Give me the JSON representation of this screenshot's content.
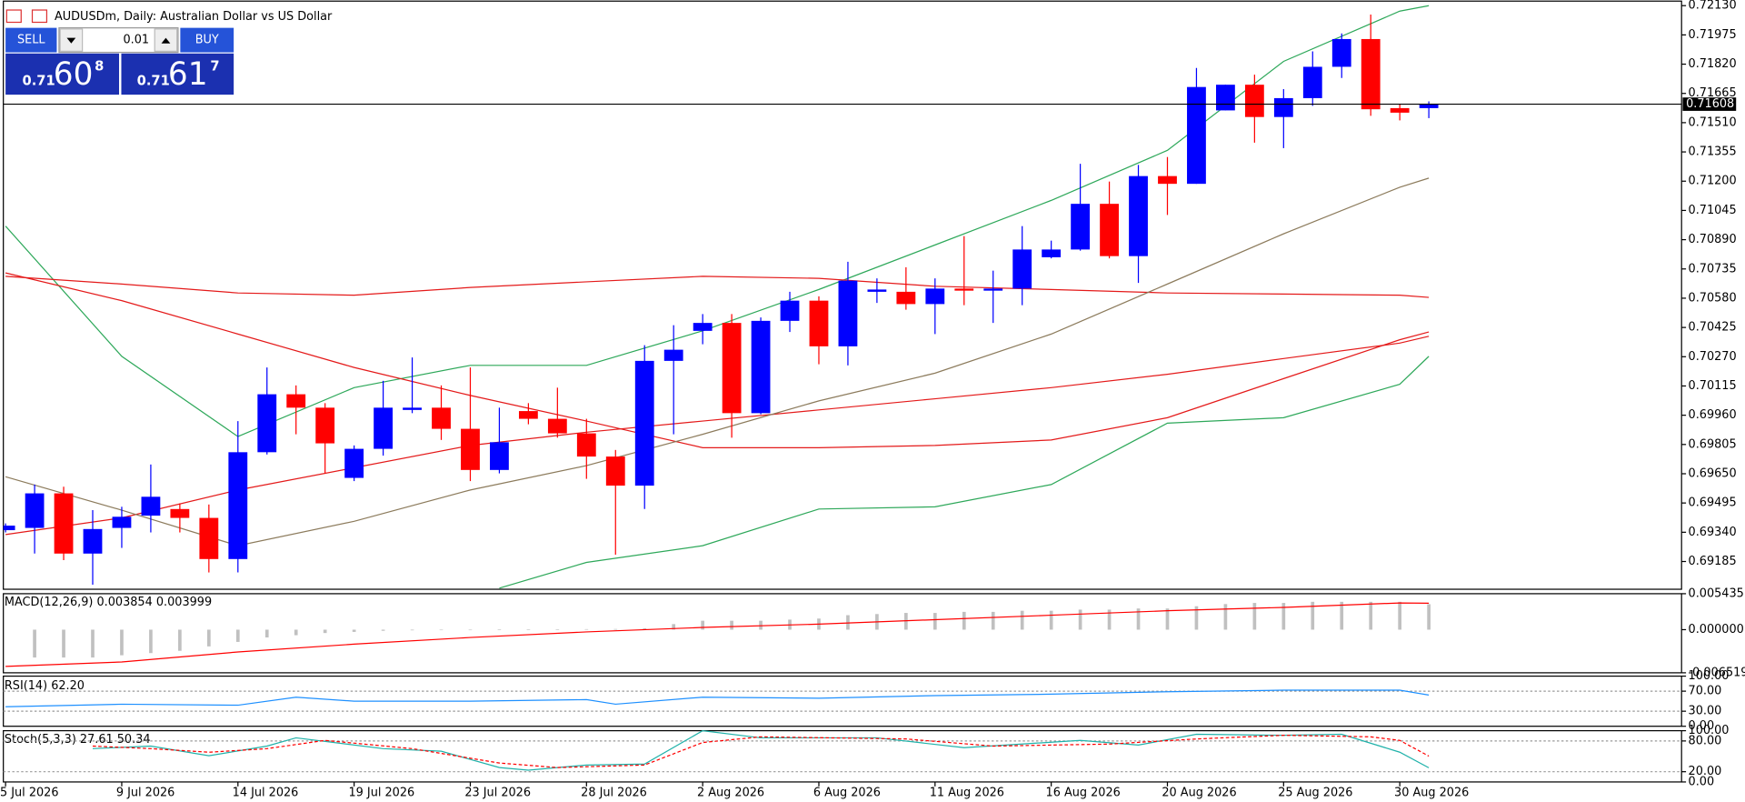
{
  "header": {
    "symbol": "AUDUSDm, Daily:  Australian Dollar vs US Dollar"
  },
  "trade_panel": {
    "sell": "SELL",
    "buy": "BUY",
    "lot": "0.01",
    "bid": {
      "big": "0.71",
      "main": "60",
      "small": "8"
    },
    "ask": {
      "big": "0.71",
      "main": "61",
      "small": "7"
    }
  },
  "chart_data": [
    {
      "type": "candlestick",
      "categories": [
        "5 Jul 2026",
        null,
        null,
        null,
        "9 Jul 2026",
        null,
        null,
        null,
        "14 Jul 2026",
        null,
        null,
        null,
        "19 Jul 2026",
        null,
        null,
        null,
        "23 Jul 2026",
        null,
        null,
        null,
        "28 Jul 2026",
        null,
        null,
        null,
        "2 Aug 2026",
        null,
        null,
        null,
        "6 Aug 2026",
        null,
        null,
        null,
        "11 Aug 2026",
        null,
        null,
        null,
        "16 Aug 2026",
        null,
        null,
        null,
        "20 Aug 2026",
        null,
        null,
        null,
        "25 Aug 2026",
        null,
        null,
        null,
        "30 Aug 2026",
        null
      ],
      "open": [
        0.69351,
        0.69363,
        0.69546,
        0.69227,
        0.69363,
        0.69428,
        0.69463,
        0.69416,
        0.69198,
        0.69764,
        0.70071,
        0.7,
        0.69628,
        0.69782,
        0.69988,
        0.7,
        0.69888,
        0.6967,
        0.69982,
        0.69941,
        0.69864,
        0.69741,
        0.69587,
        0.70248,
        0.70407,
        0.70449,
        0.69971,
        0.7046,
        0.70567,
        0.70325,
        0.70614,
        0.70614,
        0.70549,
        0.70631,
        0.7062,
        0.70631,
        0.70797,
        0.70838,
        0.7108,
        0.70803,
        0.71227,
        0.71186,
        0.71575,
        0.71711,
        0.7154,
        0.7164,
        0.71806,
        0.71953,
        0.71587,
        0.71587
      ],
      "high": [
        0.69387,
        0.69593,
        0.69581,
        0.69457,
        0.69475,
        0.69699,
        0.69493,
        0.69487,
        0.69929,
        0.70213,
        0.70118,
        0.70024,
        0.698,
        0.70142,
        0.70266,
        0.70118,
        0.70213,
        0.7,
        0.70024,
        0.70106,
        0.69941,
        0.69776,
        0.70331,
        0.70437,
        0.70496,
        0.70496,
        0.70478,
        0.70614,
        0.7059,
        0.70773,
        0.70685,
        0.70744,
        0.70685,
        0.70909,
        0.70726,
        0.70962,
        0.70885,
        0.71292,
        0.71198,
        0.71286,
        0.71328,
        0.718,
        0.71711,
        0.71764,
        0.71688,
        0.71888,
        0.71983,
        0.72083,
        0.71611,
        0.71623
      ],
      "low": [
        0.69339,
        0.69227,
        0.69192,
        0.69062,
        0.69257,
        0.69339,
        0.69339,
        0.69127,
        0.69127,
        0.69752,
        0.69859,
        0.69652,
        0.69611,
        0.69746,
        0.69971,
        0.69829,
        0.69611,
        0.69652,
        0.69912,
        0.69841,
        0.69623,
        0.69221,
        0.69463,
        0.69859,
        0.70336,
        0.69841,
        0.69965,
        0.70401,
        0.7023,
        0.70224,
        0.70555,
        0.70519,
        0.7039,
        0.70543,
        0.70449,
        0.70543,
        0.70791,
        0.70832,
        0.70791,
        0.70661,
        0.71021,
        0.71186,
        0.71575,
        0.71404,
        0.71375,
        0.71599,
        0.71747,
        0.71546,
        0.71522,
        0.71534
      ],
      "close": [
        0.69375,
        0.69546,
        0.69227,
        0.69357,
        0.69422,
        0.69528,
        0.69416,
        0.69198,
        0.69764,
        0.70071,
        0.7,
        0.69811,
        0.69782,
        0.7,
        0.7,
        0.69888,
        0.6967,
        0.69817,
        0.69941,
        0.69864,
        0.69741,
        0.69587,
        0.70248,
        0.70307,
        0.70449,
        0.69971,
        0.7046,
        0.70567,
        0.70325,
        0.70673,
        0.70626,
        0.70549,
        0.70631,
        0.7062,
        0.70631,
        0.70838,
        0.70838,
        0.7108,
        0.70803,
        0.71227,
        0.71186,
        0.71699,
        0.71711,
        0.7154,
        0.7164,
        0.71806,
        0.71953,
        0.71581,
        0.71563,
        0.71608
      ],
      "up_color": "#0000ff",
      "down_color": "#ff0000",
      "last": 0.71608,
      "ylim": [
        0.69038,
        0.72154
      ],
      "yticks": [
        {
          "value": 0.7213,
          "label": "0.72130"
        },
        0.71975,
        {
          "value": 0.7182,
          "label": "0.71820"
        },
        0.71665,
        {
          "value": 0.7151,
          "label": "0.71510"
        },
        0.71355,
        {
          "value": 0.712,
          "label": "0.71200"
        },
        0.71045,
        {
          "value": 0.7089,
          "label": "0.70890"
        },
        0.70735,
        {
          "value": 0.7058,
          "label": "0.70580"
        },
        0.70425,
        {
          "value": 0.7027,
          "label": "0.70270"
        },
        0.70115,
        {
          "value": 0.6996,
          "label": "0.69960"
        },
        0.69805,
        {
          "value": 0.6965,
          "label": "0.69650"
        },
        0.69495,
        {
          "value": 0.6934,
          "label": "0.69340"
        },
        0.69185
      ],
      "overlays": [
        {
          "color": "#2ea85a",
          "x": [
            0,
            4,
            8,
            12,
            16,
            20,
            24,
            28,
            32,
            36,
            40,
            44,
            48,
            49
          ],
          "values": [
            0.70962,
            0.70272,
            0.69847,
            0.70106,
            0.70224,
            0.70224,
            0.70407,
            0.70626,
            0.70862,
            0.71098,
            0.71363,
            0.71835,
            0.72101,
            0.7213
          ]
        },
        {
          "color": "#2ea85a",
          "x": [
            17,
            20,
            24,
            28,
            32,
            36,
            40,
            44,
            48,
            49
          ],
          "values": [
            0.69044,
            0.6918,
            0.69269,
            0.69463,
            0.69475,
            0.69593,
            0.69918,
            0.69947,
            0.70124,
            0.70272
          ]
        },
        {
          "color": "#e41a1a",
          "x": [
            0,
            4,
            8,
            12,
            16,
            20,
            24,
            28,
            32,
            36,
            40,
            44,
            48,
            49
          ],
          "values": [
            0.70696,
            0.70655,
            0.70608,
            0.70596,
            0.70637,
            0.70667,
            0.70696,
            0.70685,
            0.70643,
            0.70626,
            0.70608,
            0.70602,
            0.70596,
            0.70584
          ]
        },
        {
          "color": "#e41a1a",
          "x": [
            0,
            4,
            8,
            12,
            16,
            20,
            24,
            28,
            32,
            36,
            40,
            44,
            48,
            49
          ],
          "values": [
            0.70714,
            0.70567,
            0.7039,
            0.70213,
            0.70065,
            0.69929,
            0.69788,
            0.69788,
            0.698,
            0.69829,
            0.69947,
            0.70154,
            0.7036,
            0.70401
          ]
        },
        {
          "color": "#e41a1a",
          "x": [
            0,
            4,
            8,
            12,
            16,
            20,
            24,
            28,
            32,
            36,
            40,
            44,
            48,
            49
          ],
          "values": [
            0.69328,
            0.69416,
            0.69564,
            0.69682,
            0.698,
            0.6987,
            0.69929,
            0.69988,
            0.70047,
            0.70106,
            0.70177,
            0.7026,
            0.70342,
            0.70378
          ]
        },
        {
          "color": "#8c7b5c",
          "x": [
            0,
            4,
            8,
            12,
            16,
            20,
            24,
            28,
            32,
            36,
            40,
            44,
            48,
            49
          ],
          "values": [
            0.69634,
            0.69457,
            0.69269,
            0.69398,
            0.69564,
            0.69693,
            0.69859,
            0.70036,
            0.70183,
            0.7039,
            0.70655,
            0.70921,
            0.71168,
            0.71216
          ]
        }
      ]
    },
    {
      "type": "macd",
      "label": "MACD(12,26,9) 0.003854 0.003999",
      "histogram": {
        "color": "#c0c0c0",
        "values": [
          null,
          -0.00421,
          -0.00421,
          -0.00421,
          -0.00387,
          -0.00354,
          -0.0032,
          -0.00253,
          -0.00185,
          -0.00118,
          -0.00084,
          -0.00051,
          -0.00034,
          -0.00017,
          -0.0001,
          -5e-05,
          -3e-05,
          3e-05,
          5e-05,
          5e-05,
          8e-05,
          0.0001,
          0.0002,
          0.00084,
          0.00135,
          0.00135,
          0.00135,
          0.00152,
          0.00168,
          0.00219,
          0.00236,
          0.00253,
          0.00253,
          0.00269,
          0.00269,
          0.00286,
          0.00286,
          0.00303,
          0.00303,
          0.0032,
          0.0032,
          0.00354,
          0.00387,
          0.00404,
          0.00404,
          0.00421,
          0.00421,
          0.00421,
          0.00421,
          0.003854
        ]
      },
      "series": [
        {
          "color": "#ff0000",
          "x": [
            0,
            4,
            8,
            12,
            16,
            20,
            24,
            28,
            32,
            36,
            40,
            44,
            48,
            49
          ],
          "values": [
            -0.00556,
            -0.00488,
            -0.00337,
            -0.00219,
            -0.00118,
            -0.00034,
            0.00034,
            0.00084,
            0.00152,
            0.00219,
            0.00286,
            0.00337,
            0.00404,
            0.003999
          ]
        }
      ],
      "ylim": [
        -0.006519,
        0.005435
      ],
      "yticks": [
        0.005435,
        {
          "value": 0,
          "label": "0.000000"
        },
        -0.006519
      ]
    },
    {
      "type": "line",
      "label": "RSI(14) 62.20",
      "series": [
        {
          "color": "#1e90ff",
          "x": [
            0,
            4,
            8,
            10,
            12,
            16,
            20,
            21,
            24,
            28,
            32,
            36,
            40,
            44,
            48,
            49
          ],
          "values": [
            39,
            44,
            42,
            58,
            50,
            50,
            53,
            44,
            58,
            56,
            61,
            64,
            69,
            72,
            72,
            62.2
          ]
        }
      ],
      "ylim": [
        0,
        100
      ],
      "yticks": [
        {
          "value": 100,
          "label": "100.00"
        },
        {
          "value": 70,
          "label": "70.00"
        },
        {
          "value": 30,
          "label": "30.00"
        },
        {
          "value": 0,
          "label": "0.00"
        }
      ],
      "levels": [
        70,
        30
      ]
    },
    {
      "type": "line",
      "label": "Stoch(5,3,3) 27.61 50.34",
      "series": [
        {
          "color": "#20b2aa",
          "x": [
            3,
            5,
            7,
            9,
            10,
            13,
            15,
            17,
            18,
            20,
            22,
            24,
            26,
            30,
            33,
            37,
            39,
            41,
            44,
            46,
            48,
            49
          ],
          "values": [
            65,
            70,
            51,
            70,
            86,
            65,
            60,
            28,
            23,
            33,
            35,
            100,
            86,
            86,
            67,
            81,
            72,
            93,
            91,
            93,
            58,
            27.61
          ]
        },
        {
          "color": "#ff0000",
          "dash": true,
          "x": [
            3,
            5,
            7,
            9,
            11,
            14,
            17,
            19,
            22,
            24,
            26,
            31,
            34,
            38,
            41,
            44,
            47,
            48,
            49
          ],
          "values": [
            70,
            65,
            58,
            65,
            81,
            65,
            37,
            28,
            33,
            77,
            88,
            84,
            70,
            74,
            84,
            91,
            88,
            81,
            50.34
          ]
        }
      ],
      "ylim": [
        0,
        100
      ],
      "yticks": [
        {
          "value": 100,
          "label": "100.00"
        },
        {
          "value": 80,
          "label": "80.00"
        },
        {
          "value": 20,
          "label": "20.00"
        },
        {
          "value": 0,
          "label": "0.00"
        }
      ],
      "levels": [
        80,
        20
      ]
    }
  ]
}
